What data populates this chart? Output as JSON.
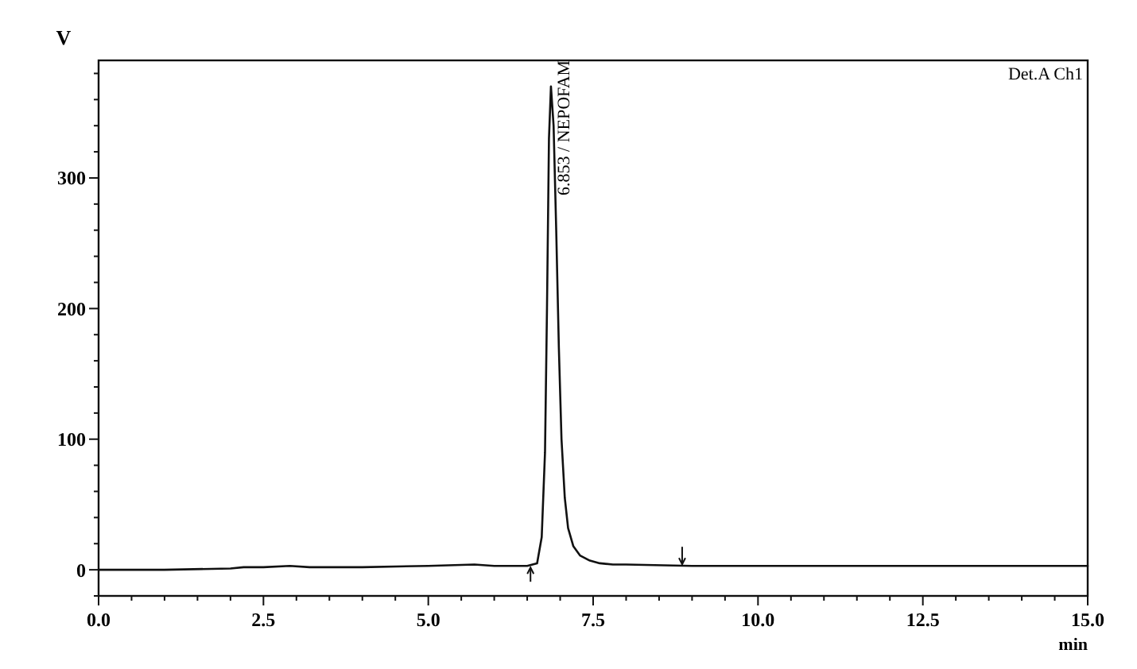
{
  "chart_data": {
    "type": "line",
    "ylabel": "V",
    "xlabel": "min",
    "annotations": [
      "Det.A Ch1",
      {
        "text": "6.853 / NEPOFAM",
        "x": 6.853,
        "y": 370
      }
    ],
    "x": [
      0,
      1,
      2,
      2.2,
      2.5,
      2.9,
      3.2,
      4,
      5,
      5.7,
      6,
      6.5,
      6.65,
      6.72,
      6.77,
      6.8,
      6.83,
      6.86,
      6.9,
      6.94,
      6.98,
      7.02,
      7.07,
      7.12,
      7.2,
      7.3,
      7.45,
      7.6,
      7.8,
      8,
      9,
      10,
      12,
      15
    ],
    "series": [
      {
        "color": "#111111",
        "values": [
          0,
          0,
          1,
          2,
          2,
          3,
          2,
          2,
          3,
          4,
          3,
          3,
          5,
          25,
          90,
          200,
          330,
          370,
          340,
          260,
          170,
          100,
          55,
          32,
          18,
          11,
          7,
          5,
          4,
          4,
          3,
          3,
          3,
          3
        ]
      }
    ],
    "xlim": [
      0,
      15
    ],
    "ylim": [
      -20,
      390
    ],
    "xticks": [
      {
        "value": 0,
        "label": "0.0"
      },
      {
        "value": 0.5,
        "label": null
      },
      {
        "value": 1,
        "label": null
      },
      {
        "value": 1.5,
        "label": null
      },
      {
        "value": 2,
        "label": null
      },
      {
        "value": 2.5,
        "label": "2.5"
      },
      {
        "value": 3,
        "label": null
      },
      {
        "value": 3.5,
        "label": null
      },
      {
        "value": 4,
        "label": null
      },
      {
        "value": 4.5,
        "label": null
      },
      {
        "value": 5,
        "label": "5.0"
      },
      {
        "value": 5.5,
        "label": null
      },
      {
        "value": 6,
        "label": null
      },
      {
        "value": 6.5,
        "label": null
      },
      {
        "value": 7,
        "label": null
      },
      {
        "value": 7.5,
        "label": "7.5"
      },
      {
        "value": 8,
        "label": null
      },
      {
        "value": 8.5,
        "label": null
      },
      {
        "value": 9,
        "label": null
      },
      {
        "value": 9.5,
        "label": null
      },
      {
        "value": 10,
        "label": "10.0"
      },
      {
        "value": 10.5,
        "label": null
      },
      {
        "value": 11,
        "label": null
      },
      {
        "value": 11.5,
        "label": null
      },
      {
        "value": 12,
        "label": null
      },
      {
        "value": 12.5,
        "label": "12.5"
      },
      {
        "value": 13,
        "label": null
      },
      {
        "value": 13.5,
        "label": null
      },
      {
        "value": 14,
        "label": null
      },
      {
        "value": 14.5,
        "label": null
      },
      {
        "value": 15,
        "label": "15.0"
      }
    ],
    "yticks": [
      {
        "value": -20,
        "label": null
      },
      0,
      {
        "value": 20,
        "label": null
      },
      {
        "value": 40,
        "label": null
      },
      {
        "value": 60,
        "label": null
      },
      {
        "value": 80,
        "label": null
      },
      100,
      {
        "value": 120,
        "label": null
      },
      {
        "value": 140,
        "label": null
      },
      {
        "value": 160,
        "label": null
      },
      {
        "value": 180,
        "label": null
      },
      200,
      {
        "value": 220,
        "label": null
      },
      {
        "value": 240,
        "label": null
      },
      {
        "value": 260,
        "label": null
      },
      {
        "value": 280,
        "label": null
      },
      300,
      {
        "value": 320,
        "label": null
      },
      {
        "value": 340,
        "label": null
      },
      {
        "value": 360,
        "label": null
      },
      {
        "value": 380,
        "label": null
      }
    ],
    "grid": false,
    "marker": "none",
    "line_style": "solid"
  }
}
